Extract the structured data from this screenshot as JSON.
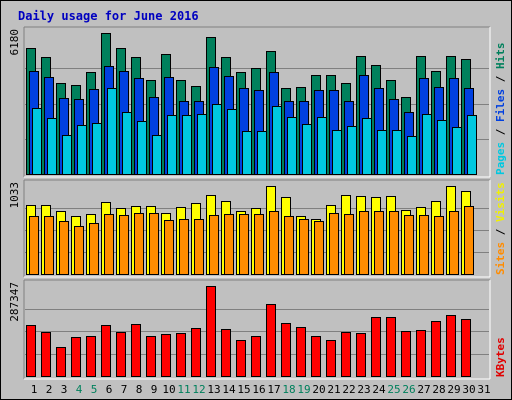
{
  "chart_data": {
    "type": "bar",
    "title": "Daily usage for June 2016",
    "categories": [
      "1",
      "2",
      "3",
      "4",
      "5",
      "6",
      "7",
      "8",
      "9",
      "10",
      "11",
      "12",
      "13",
      "14",
      "15",
      "16",
      "17",
      "18",
      "19",
      "20",
      "21",
      "22",
      "23",
      "24",
      "25",
      "26",
      "27",
      "28",
      "29",
      "30",
      "31"
    ],
    "weekend_days": [
      "4",
      "5",
      "11",
      "12",
      "18",
      "19",
      "25",
      "26"
    ],
    "panels": [
      {
        "name": "top",
        "max_label": "6180",
        "ymax": 6180,
        "legend": [
          {
            "text": "Pages",
            "color": "#00c8e0"
          },
          {
            "text": " / ",
            "color": "#000000"
          },
          {
            "text": "Files",
            "color": "#0040e0"
          },
          {
            "text": " / ",
            "color": "#000000"
          },
          {
            "text": "Hits",
            "color": "#00805c"
          }
        ],
        "series": [
          {
            "name": "Hits",
            "color": "#00805c",
            "values": [
              5540,
              5110,
              3970,
              3920,
              4480,
              6180,
              5510,
              5140,
              4120,
              5240,
              4120,
              3860,
              6000,
              5130,
              4490,
              4660,
              5370,
              3790,
              3830,
              4320,
              4330,
              3990,
              5190,
              4780,
              4100,
              3390,
              5190,
              4500,
              5150,
              5060,
              null
            ]
          },
          {
            "name": "Files",
            "color": "#0040e0",
            "values": [
              4500,
              4250,
              3310,
              3280,
              3710,
              4740,
              4520,
              4210,
              3390,
              4250,
              3200,
              3190,
              4700,
              4310,
              3750,
              3690,
              4450,
              3180,
              3220,
              3670,
              3680,
              3190,
              4320,
              3780,
              3290,
              2700,
              4200,
              3800,
              4190,
              3780,
              null
            ]
          },
          {
            "name": "Pages",
            "color": "#00c8e0",
            "values": [
              2900,
              2450,
              1710,
              2140,
              2220,
              3780,
              2730,
              2320,
              1720,
              2600,
              2580,
              2610,
              3060,
              2870,
              1880,
              1900,
              2990,
              2520,
              2170,
              2500,
              1910,
              2120,
              2440,
              1940,
              1920,
              1670,
              2630,
              2370,
              2050,
              2600,
              null
            ]
          }
        ]
      },
      {
        "name": "middle",
        "max_label": "1033",
        "ymax": 1033,
        "legend": [
          {
            "text": "Sites",
            "color": "#ff8c00"
          },
          {
            "text": " / ",
            "color": "#000000"
          },
          {
            "text": "Visits",
            "color": "#f0f000"
          }
        ],
        "series": [
          {
            "name": "Visits",
            "color": "#ffff00",
            "values": [
              810,
              810,
              740,
              680,
              710,
              850,
              780,
              800,
              800,
              720,
              790,
              830,
              930,
              860,
              740,
              780,
              1033,
              900,
              680,
              650,
              810,
              930,
              910,
              900,
              910,
              750,
              790,
              860,
              1033,
              970,
              null
            ]
          },
          {
            "name": "Sites",
            "color": "#ff8c00",
            "values": [
              680,
              680,
              620,
              560,
              600,
              700,
              690,
              720,
              720,
              630,
              650,
              650,
              690,
              710,
              710,
              710,
              740,
              680,
              650,
              620,
              720,
              700,
              740,
              740,
              740,
              690,
              690,
              680,
              740,
              800,
              null
            ]
          }
        ]
      },
      {
        "name": "bottom",
        "max_label": "287347",
        "ymax": 287347,
        "legend": [
          {
            "text": "KBytes",
            "color": "#e00000"
          }
        ],
        "series": [
          {
            "name": "KBytes",
            "color": "#ff0000",
            "values": [
              164000,
              141000,
              94000,
              126000,
              129000,
              163000,
              140000,
              167000,
              127000,
              134000,
              138000,
              153000,
              287347,
              149000,
              116000,
              127000,
              229000,
              170000,
              158000,
              128000,
              114000,
              140000,
              138000,
              188000,
              188000,
              145000,
              147000,
              175000,
              195000,
              182000,
              null
            ]
          }
        ]
      }
    ]
  }
}
